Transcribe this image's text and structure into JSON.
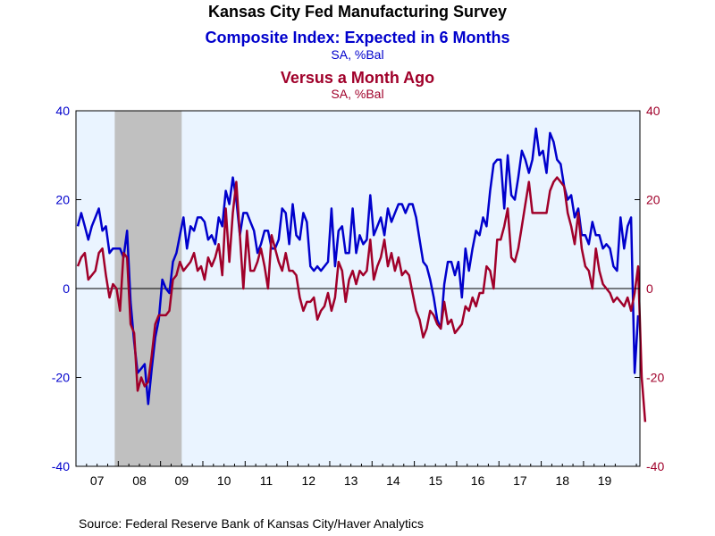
{
  "chart_data": {
    "type": "line",
    "title": "Kansas City Fed Manufacturing Survey",
    "subtitle_1": "Composite Index: Expected in 6 Months",
    "subtitle_1_units": "SA, %Bal",
    "subtitle_2": "Versus a Month Ago",
    "subtitle_2_units": "SA, %Bal",
    "source": "Source:  Federal Reserve Bank of Kansas City/Haver Analytics",
    "x_start": "2007-01",
    "x_end": "2020-04",
    "x_tick_labels": [
      "07",
      "08",
      "09",
      "10",
      "11",
      "12",
      "13",
      "14",
      "15",
      "16",
      "17",
      "18",
      "19"
    ],
    "ylim_left": [
      -40,
      40
    ],
    "ylim_right": [
      -40,
      40
    ],
    "y_ticks_left": [
      "40",
      "20",
      "0",
      "-20",
      "-40"
    ],
    "y_ticks_right": [
      "40",
      "20",
      "0",
      "-20",
      "-40"
    ],
    "grid": false,
    "zero_line": true,
    "recession_shading": {
      "start": "2007-12",
      "end": "2009-06",
      "color": "#c0c0c0"
    },
    "colors": {
      "plot_background": "#eaf4ff",
      "expected_series": "#0000cc",
      "mom_series": "#a0002a",
      "recession": "#c0c0c0"
    },
    "series": [
      {
        "axis": "left",
        "color": "#0000cc",
        "start": "2007-01",
        "values": [
          14,
          17,
          14,
          11,
          14,
          16,
          18,
          13,
          14,
          8,
          9,
          9,
          9,
          7,
          13,
          -3,
          -12,
          -19,
          -18,
          -17,
          -26,
          -18,
          -11,
          -7,
          2,
          0,
          -1,
          6,
          8,
          12,
          16,
          9,
          14,
          13,
          16,
          16,
          15,
          11,
          12,
          10,
          16,
          14,
          22,
          19,
          25,
          20,
          12,
          17,
          17,
          15,
          13,
          8,
          10,
          13,
          13,
          9,
          9,
          11,
          18,
          17,
          10,
          19,
          12,
          11,
          17,
          15,
          5,
          4,
          5,
          4,
          5,
          6,
          18,
          5,
          13,
          14,
          8,
          8,
          18,
          8,
          12,
          10,
          11,
          21,
          12,
          14,
          16,
          12,
          18,
          15,
          17,
          19,
          19,
          17,
          19,
          19,
          16,
          11,
          6,
          5,
          2,
          -2,
          -7,
          -9,
          1,
          6,
          6,
          3,
          6,
          -2,
          9,
          4,
          9,
          13,
          12,
          16,
          14,
          22,
          28,
          29,
          29,
          18,
          30,
          21,
          20,
          25,
          31,
          29,
          26,
          29,
          36,
          30,
          31,
          26,
          35,
          33,
          29,
          28,
          23,
          20,
          21,
          16,
          18,
          12,
          12,
          10,
          15,
          12,
          12,
          9,
          10,
          9,
          5,
          4,
          16,
          9,
          14,
          16,
          -19,
          -6
        ]
      },
      {
        "axis": "right",
        "color": "#a0002a",
        "start": "2007-01",
        "values": [
          5,
          7,
          8,
          2,
          3,
          4,
          8,
          9,
          3,
          -2,
          1,
          0,
          -5,
          8,
          7,
          -8,
          -10,
          -23,
          -20,
          -22,
          -21,
          -15,
          -8,
          -6,
          -6,
          -6,
          -5,
          2,
          3,
          6,
          4,
          5,
          6,
          8,
          4,
          5,
          2,
          7,
          5,
          7,
          10,
          3,
          18,
          6,
          17,
          24,
          12,
          0,
          13,
          4,
          4,
          6,
          9,
          5,
          0,
          12,
          9,
          6,
          4,
          8,
          4,
          4,
          3,
          -2,
          -5,
          -3,
          -3,
          -2,
          -7,
          -5,
          -4,
          -1,
          -5,
          -2,
          6,
          4,
          -3,
          2,
          4,
          1,
          4,
          3,
          4,
          11,
          2,
          5,
          7,
          11,
          5,
          8,
          4,
          7,
          3,
          4,
          3,
          -1,
          -5,
          -7,
          -11,
          -9,
          -5,
          -6,
          -8,
          -9,
          -3,
          -8,
          -7,
          -10,
          -9,
          -8,
          -4,
          -5,
          -2,
          -4,
          -1,
          -1,
          5,
          4,
          0,
          11,
          11,
          14,
          18,
          7,
          6,
          9,
          14,
          19,
          24,
          17,
          17,
          17,
          17,
          17,
          22,
          24,
          25,
          24,
          23,
          17,
          14,
          10,
          17,
          9,
          5,
          4,
          0,
          9,
          4,
          1,
          0,
          -1,
          -3,
          -2,
          -3,
          -4,
          -2,
          -5,
          -1,
          5,
          -20,
          -30
        ]
      }
    ]
  }
}
